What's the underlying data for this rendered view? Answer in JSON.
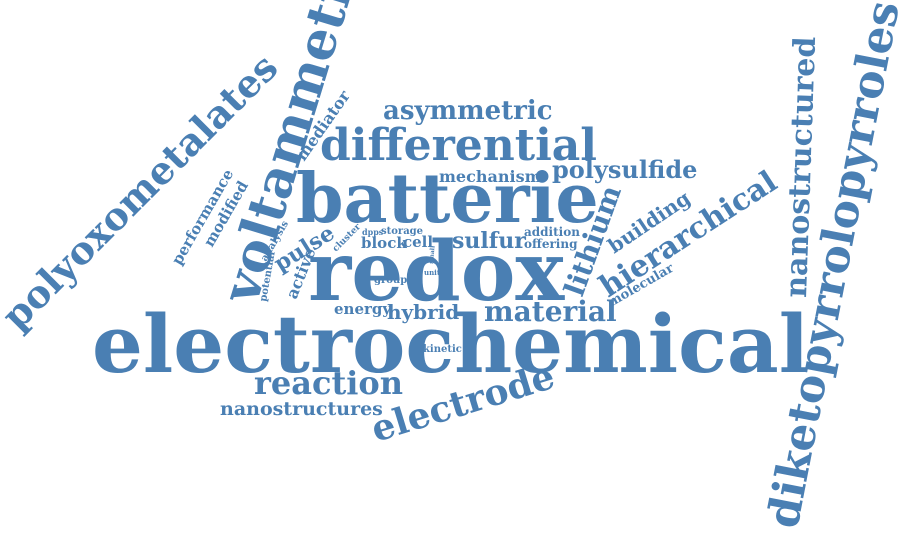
{
  "cloud": {
    "color": "#4a7fb3",
    "words": {
      "electrochemical": "electrochemical",
      "redox": "redox",
      "batterie": "batterie",
      "voltammetry": "voltammetry",
      "diketopyrrolopyrroles": "diketopyrrolopyrroles",
      "differential": "differential",
      "polyoxometalates": "polyoxometalates",
      "nanostructured": "nanostructured",
      "hierarchical": "hierarchical",
      "electrode": "electrode",
      "reaction": "reaction",
      "material": "material",
      "asymmetric": "asymmetric",
      "polysulfide": "polysulfide",
      "lithium": "lithium",
      "sulfur": "sulfur",
      "nanostructures": "nanostructures",
      "building": "building",
      "pulse": "pulse",
      "mediator": "mediator",
      "performance": "performance",
      "modified": "modified",
      "mechanism": "mechanism",
      "hybrid": "hybrid",
      "energy": "energy",
      "active": "active",
      "molecular": "molecular",
      "block": "block",
      "cell": "cell",
      "storage": "storage",
      "addition": "addition",
      "offering": "offering",
      "analysis": "analysis",
      "potential": "potential",
      "cluster": "cluster",
      "dpps": "dpps",
      "group": "group",
      "kinetic": "kinetic",
      "unit": "unit",
      "small": "small"
    }
  }
}
